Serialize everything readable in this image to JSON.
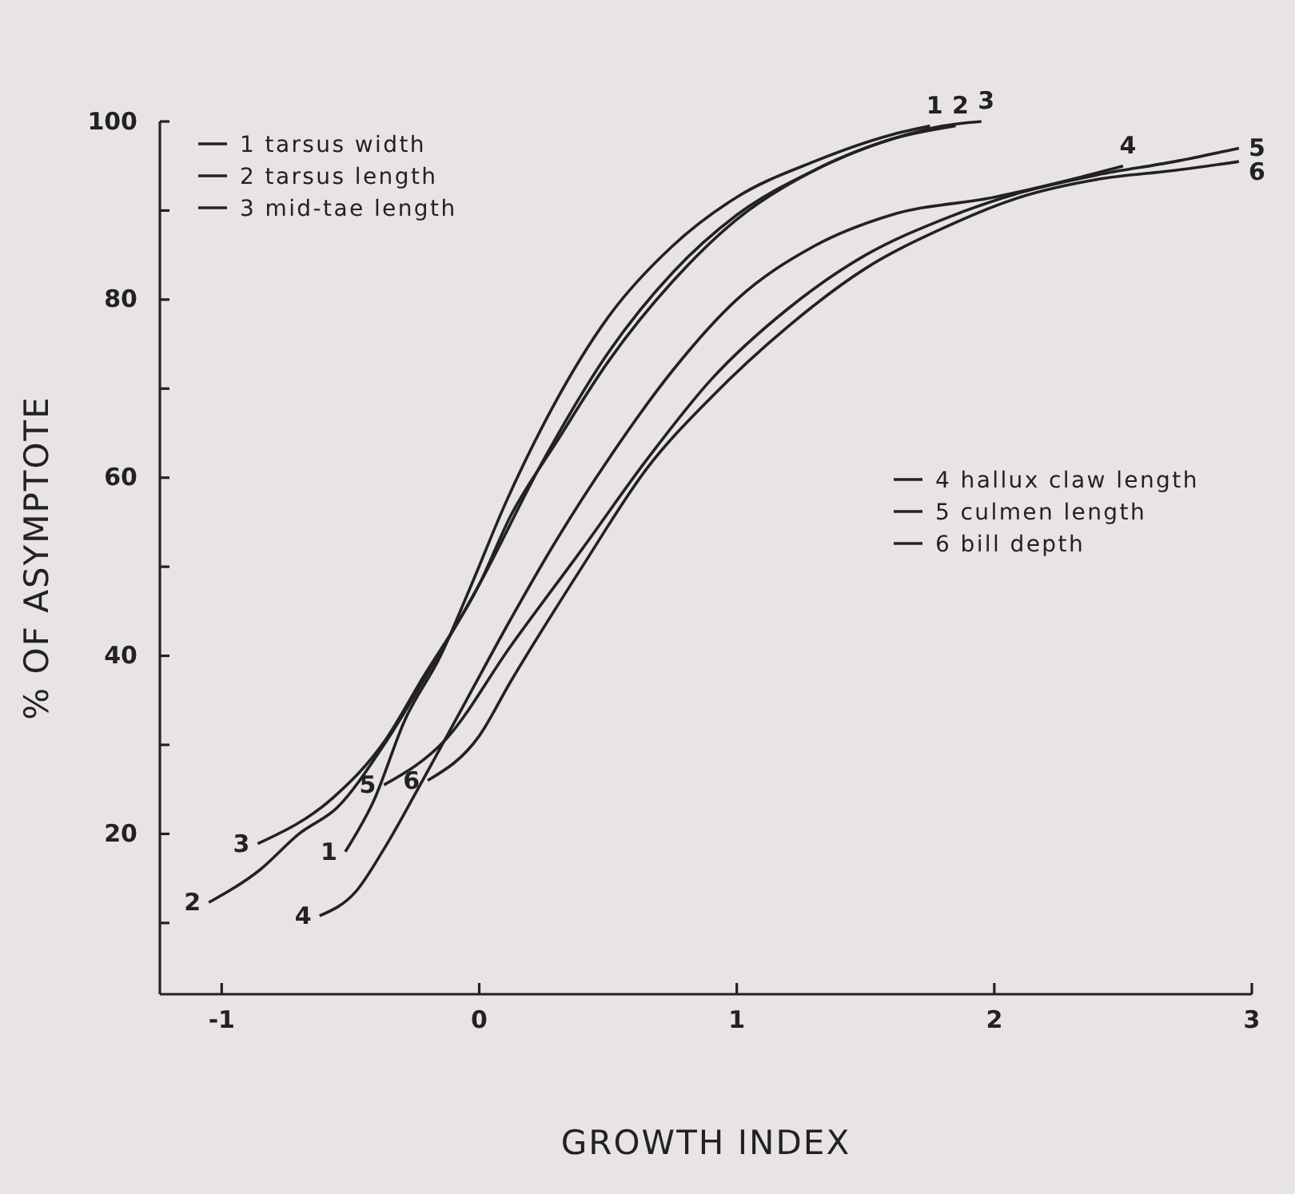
{
  "chart_data": {
    "type": "line",
    "xlabel": "GROWTH INDEX",
    "ylabel": "% OF ASYMPTOTE",
    "xlim": [
      -1.24,
      3
    ],
    "ylim": [
      2,
      100
    ],
    "xticks": [
      -1,
      0,
      1,
      2,
      3
    ],
    "yticks": [
      {
        "value": 10,
        "label": null
      },
      20,
      {
        "value": 30,
        "label": null
      },
      40,
      {
        "value": 50,
        "label": null
      },
      60,
      {
        "value": 70,
        "label": null
      },
      80,
      {
        "value": 90,
        "label": null
      },
      100
    ],
    "grid": false,
    "legend": "top left",
    "series": [
      {
        "name": "1 tarsus width",
        "color": "#222222",
        "x": [
          -0.52,
          -0.41,
          -0.29,
          -0.15,
          -0.03,
          0.1,
          0.25,
          0.5,
          0.75,
          1.0,
          1.3,
          1.6,
          1.75
        ],
        "values": [
          18,
          23.7,
          32.7,
          40,
          48,
          57,
          66,
          78,
          86,
          91.5,
          95.5,
          98.5,
          99.5
        ]
      },
      {
        "name": "2 tarsus length",
        "color": "#222222",
        "x": [
          -1.05,
          -0.85,
          -0.7,
          -0.55,
          -0.37,
          -0.2,
          0,
          0.25,
          0.5,
          0.75,
          1.0,
          1.3,
          1.6,
          1.85
        ],
        "values": [
          12.3,
          16,
          20,
          23,
          30,
          38,
          48,
          62,
          74,
          83,
          89.5,
          94.5,
          98,
          99.5
        ]
      },
      {
        "name": "3 mid-tae length",
        "color": "#222222",
        "x": [
          -0.86,
          -0.57,
          -0.37,
          -0.22,
          0,
          0.12,
          0.3,
          0.5,
          0.75,
          1.0,
          1.3,
          1.6,
          1.8,
          1.95
        ],
        "values": [
          18.9,
          24,
          30.3,
          37.5,
          48,
          55.6,
          64,
          73,
          82,
          89,
          94.5,
          98,
          99.5,
          100
        ]
      },
      {
        "name": "4 hallux claw length",
        "color": "#222222",
        "x": [
          -0.62,
          -0.48,
          -0.37,
          -0.22,
          -0.05,
          0.12,
          0.3,
          0.5,
          0.75,
          1.0,
          1.3,
          1.6,
          2.0,
          2.3,
          2.5
        ],
        "values": [
          10.8,
          13.5,
          18.3,
          26,
          35,
          44,
          53,
          62,
          72,
          80,
          86,
          89.5,
          91.5,
          93.5,
          95
        ]
      },
      {
        "name": "5 culmen length",
        "color": "#222222",
        "x": [
          -0.37,
          -0.13,
          0.12,
          0.4,
          0.65,
          0.9,
          1.2,
          1.5,
          1.8,
          2.1,
          2.4,
          2.7,
          2.95
        ],
        "values": [
          25.5,
          30.6,
          41,
          52,
          62,
          71,
          79,
          85,
          89,
          92,
          94,
          95.5,
          97
        ]
      },
      {
        "name": "6 bill depth",
        "color": "#222222",
        "x": [
          -0.2,
          0,
          0.12,
          0.4,
          0.65,
          0.9,
          1.2,
          1.5,
          1.8,
          2.1,
          2.4,
          2.7,
          2.95
        ],
        "values": [
          26,
          31,
          37,
          50,
          61,
          69,
          77,
          83.5,
          88,
          91.5,
          93.5,
          94.5,
          95.5
        ]
      }
    ],
    "annotations": [
      {
        "text": "1",
        "x": -0.52,
        "y": 18
      },
      {
        "text": "2",
        "x": -1.05,
        "y": 12.3
      },
      {
        "text": "3",
        "x": -0.86,
        "y": 18.9
      },
      {
        "text": "4",
        "x": -0.62,
        "y": 10.8
      },
      {
        "text": "5",
        "x": -0.37,
        "y": 25.5
      },
      {
        "text": "6",
        "x": -0.2,
        "y": 26
      },
      {
        "text": "1",
        "x": 1.75,
        "y": 99.5
      },
      {
        "text": "2",
        "x": 1.85,
        "y": 99.5
      },
      {
        "text": "3",
        "x": 1.95,
        "y": 100
      },
      {
        "text": "4",
        "x": 2.5,
        "y": 95
      },
      {
        "text": "5",
        "x": 2.95,
        "y": 97
      },
      {
        "text": "6",
        "x": 2.95,
        "y": 95.5
      }
    ]
  }
}
